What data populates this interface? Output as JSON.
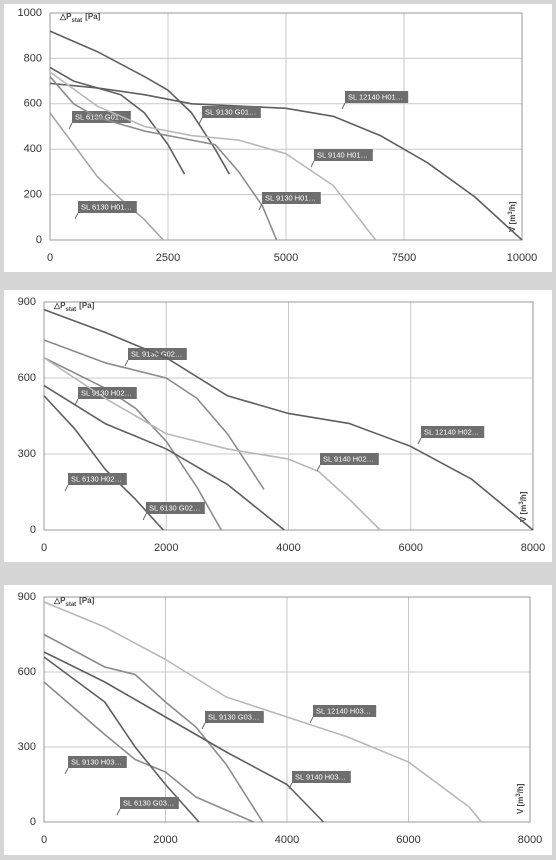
{
  "chart_data": [
    {
      "type": "line",
      "ylabel_parts": [
        "△P",
        "stat",
        "[Pa]"
      ],
      "xlabel_parts": [
        "V [m",
        "3",
        "/h]"
      ],
      "xlim": [
        0,
        10000
      ],
      "ylim": [
        0,
        1000
      ],
      "xticks": [
        0,
        2500,
        5000,
        7500,
        10000
      ],
      "yticks": [
        0,
        200,
        400,
        600,
        800,
        1000
      ],
      "grid": true,
      "series": [
        {
          "name": "SL 12140 H01…",
          "color": "#5f5f5f",
          "x": [
            0,
            1000,
            2000,
            3000,
            4000,
            5000,
            6000,
            7000,
            8000,
            9000,
            10000
          ],
          "values": [
            690,
            670,
            640,
            600,
            590,
            580,
            545,
            460,
            340,
            190,
            0
          ]
        },
        {
          "name": "SL 9130 G01…",
          "color": "#5f5f5f",
          "x": [
            0,
            1000,
            2000,
            2500,
            3000,
            3500,
            3800
          ],
          "values": [
            920,
            830,
            720,
            660,
            560,
            400,
            290
          ]
        },
        {
          "name": "SL 6130 G01…",
          "color": "#5f5f5f",
          "x": [
            0,
            500,
            1000,
            1500,
            2000,
            2500,
            2850
          ],
          "values": [
            760,
            700,
            670,
            640,
            560,
            420,
            290
          ]
        },
        {
          "name": "SL 9140 H01…",
          "color": "#b8b8b8",
          "x": [
            0,
            1000,
            2000,
            3000,
            4000,
            5000,
            6000,
            6900
          ],
          "values": [
            740,
            590,
            500,
            460,
            440,
            380,
            240,
            0
          ]
        },
        {
          "name": "SL 9130 H01…",
          "color": "#8c8c8c",
          "x": [
            0,
            500,
            1000,
            2000,
            3000,
            3500,
            4000,
            4500,
            4800
          ],
          "values": [
            720,
            600,
            540,
            480,
            440,
            420,
            300,
            150,
            0
          ]
        },
        {
          "name": "SL 6130 H01…",
          "color": "#a5a5a5",
          "x": [
            0,
            500,
            1000,
            1500,
            2000,
            2400
          ],
          "values": [
            560,
            420,
            280,
            180,
            90,
            0
          ]
        }
      ]
    },
    {
      "type": "line",
      "ylabel_parts": [
        "△P",
        "stat",
        "[Pa]"
      ],
      "xlabel_parts": [
        "V [m",
        "3",
        "/h]"
      ],
      "xlim": [
        0,
        8000
      ],
      "ylim": [
        0,
        900
      ],
      "xticks": [
        0,
        2000,
        4000,
        6000,
        8000
      ],
      "yticks": [
        0,
        300,
        600,
        900
      ],
      "grid": true,
      "series": [
        {
          "name": "SL 9130 G02…",
          "color": "#8c8c8c",
          "x": [
            0,
            1000,
            2000,
            2500,
            3000,
            3600
          ],
          "values": [
            750,
            660,
            600,
            520,
            380,
            160
          ]
        },
        {
          "name": "SL 9130 H02…",
          "color": "#8c8c8c",
          "x": [
            0,
            1000,
            1500,
            2000,
            2500,
            2900
          ],
          "values": [
            680,
            560,
            480,
            350,
            170,
            0
          ]
        },
        {
          "name": "SL 12140 H02…",
          "color": "#5f5f5f",
          "x": [
            0,
            1000,
            2000,
            3000,
            4000,
            5000,
            6000,
            7000,
            8000
          ],
          "values": [
            870,
            780,
            680,
            530,
            460,
            420,
            330,
            200,
            0
          ]
        },
        {
          "name": "SL 9140 H02…",
          "color": "#b8b8b8",
          "x": [
            0,
            1000,
            2000,
            3000,
            4000,
            4500,
            5000,
            5500
          ],
          "values": [
            680,
            520,
            380,
            320,
            280,
            230,
            120,
            0
          ]
        },
        {
          "name": "SL 6130 H02…",
          "color": "#5f5f5f",
          "x": [
            0,
            500,
            1000,
            1500,
            1950
          ],
          "values": [
            530,
            400,
            240,
            120,
            0
          ]
        },
        {
          "name": "SL 6130 G02…",
          "color": "#5f5f5f",
          "x": [
            0,
            1000,
            2000,
            3000,
            3930
          ],
          "values": [
            570,
            420,
            320,
            180,
            0
          ]
        }
      ]
    },
    {
      "type": "line",
      "ylabel_parts": [
        "△P",
        "stat",
        "[Pa]"
      ],
      "xlabel_parts": [
        "V [m",
        "3",
        "/h]"
      ],
      "xlim": [
        0,
        8000
      ],
      "ylim": [
        0,
        900
      ],
      "xticks": [
        0,
        2000,
        4000,
        6000,
        8000
      ],
      "yticks": [
        0,
        300,
        600,
        900
      ],
      "grid": true,
      "series": [
        {
          "name": "SL 9130 G03…",
          "color": "#8c8c8c",
          "x": [
            0,
            1000,
            1500,
            2000,
            2500,
            3000,
            3600
          ],
          "values": [
            750,
            620,
            590,
            480,
            380,
            230,
            0
          ]
        },
        {
          "name": "SL 12140 H03…",
          "color": "#b8b8b8",
          "x": [
            0,
            1000,
            2000,
            3000,
            4000,
            5000,
            6000,
            7000,
            7200
          ],
          "values": [
            880,
            780,
            650,
            500,
            420,
            340,
            240,
            60,
            0
          ]
        },
        {
          "name": "SL 9130 H03…",
          "color": "#8c8c8c",
          "x": [
            0,
            1000,
            1500,
            2000,
            2500,
            3450
          ],
          "values": [
            560,
            350,
            250,
            200,
            100,
            0
          ]
        },
        {
          "name": "SL 9140 H03…",
          "color": "#5f5f5f",
          "x": [
            0,
            1000,
            2000,
            3000,
            4000,
            4600
          ],
          "values": [
            680,
            560,
            420,
            280,
            150,
            0
          ]
        },
        {
          "name": "SL 6130 G03…",
          "color": "#5f5f5f",
          "x": [
            0,
            1000,
            1500,
            2000,
            2550
          ],
          "values": [
            660,
            480,
            300,
            150,
            0
          ]
        }
      ]
    }
  ]
}
